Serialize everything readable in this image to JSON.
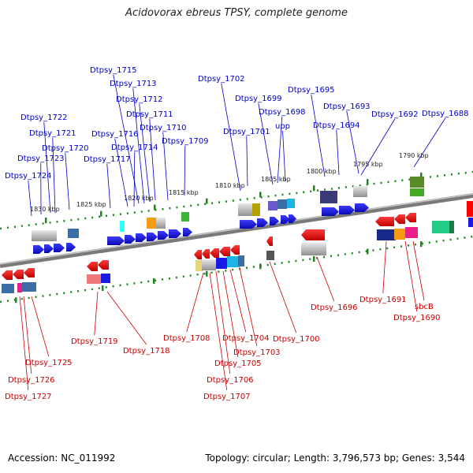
{
  "title": "Acidovorax ebreus TPSY, complete genome",
  "footer": {
    "accession": "Accession: NC_011992",
    "summary": "Topology: circular; Length: 3,796,573 bp; Genes: 3,544"
  },
  "kbp_ticks": [
    "1830 kbp",
    "1825 kbp",
    "1820 kbp",
    "1815 kbp",
    "1810 kbp",
    "1805 kbp",
    "1800 kbp",
    "1795 kbp",
    "1790 kbp"
  ],
  "genes_top": [
    "Dtpsy_1724",
    "Dtpsy_1723",
    "Dtpsy_1722",
    "Dtpsy_1721",
    "Dtpsy_1720",
    "Dtpsy_1717",
    "Dtpsy_1716",
    "Dtpsy_1715",
    "Dtpsy_1714",
    "Dtpsy_1713",
    "Dtpsy_1712",
    "Dtpsy_1711",
    "Dtpsy_1710",
    "Dtpsy_1709",
    "Dtpsy_1702",
    "Dtpsy_1701",
    "Dtpsy_1699",
    "Dtpsy_1698",
    "upp",
    "Dtpsy_1695",
    "Dtpsy_1694",
    "Dtpsy_1693",
    "Dtpsy_1692",
    "Dtpsy_1688"
  ],
  "genes_bottom": [
    "Dtpsy_1727",
    "Dtpsy_1726",
    "Dtpsy_1725",
    "Dtpsy_1719",
    "Dtpsy_1718",
    "Dtpsy_1708",
    "Dtpsy_1707",
    "Dtpsy_1706",
    "Dtpsy_1705",
    "Dtpsy_1704",
    "Dtpsy_1703",
    "Dtpsy_1700",
    "Dtpsy_1696",
    "Dtpsy_1691",
    "sbcB",
    "Dtpsy_1690"
  ],
  "colors": {
    "forward_gene": "#1a1ae6",
    "reverse_gene": "#e61a1a",
    "backbone": "#808080",
    "tick": "#1a8a1a",
    "top_label": "#0000cc",
    "bottom_label": "#cc0000"
  }
}
